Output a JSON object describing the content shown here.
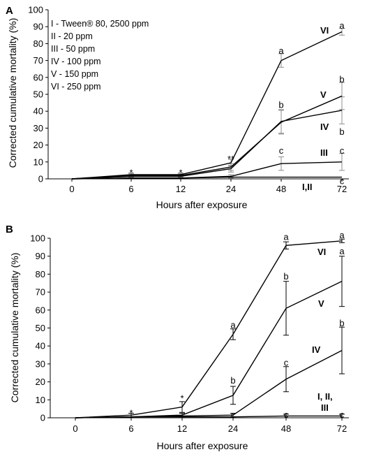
{
  "chart_data": [
    {
      "panel": "A",
      "type": "line",
      "xlabel": "Hours after exposure",
      "ylabel": "Corrected cumulative mortality (%)",
      "x": [
        0,
        6,
        12,
        24,
        48,
        72
      ],
      "ylim": [
        0,
        100
      ],
      "yticks": [
        0,
        10,
        20,
        30,
        40,
        50,
        60,
        70,
        80,
        90,
        100
      ],
      "grid": false,
      "legend": [
        "I - Tween® 80, 2500 ppm",
        "II - 20 ppm",
        "III - 50 ppm",
        "IV - 100 ppm",
        "V - 150 ppm",
        "VI - 250 ppm"
      ],
      "legend_placement": "top-left",
      "series": [
        {
          "name": "I,II",
          "values": [
            0,
            0.5,
            0.5,
            1,
            1,
            1
          ],
          "errors": [
            0,
            0,
            0,
            0,
            0,
            0
          ]
        },
        {
          "name": "III",
          "values": [
            0,
            0.5,
            0.5,
            1.5,
            9,
            10
          ],
          "errors": [
            0,
            0,
            0,
            1,
            4,
            5
          ]
        },
        {
          "name": "IV",
          "values": [
            0,
            1.5,
            1.5,
            6,
            34,
            40.5
          ],
          "errors": [
            0,
            1,
            1,
            2,
            7,
            8
          ]
        },
        {
          "name": "V",
          "values": [
            0,
            2,
            2,
            7,
            33.5,
            49
          ],
          "errors": [
            0,
            1,
            1,
            2,
            7,
            8
          ]
        },
        {
          "name": "VI",
          "values": [
            0,
            2.5,
            2.5,
            9.5,
            70,
            87
          ],
          "errors": [
            0,
            1,
            1,
            2,
            4,
            2
          ]
        }
      ],
      "annotations": [
        {
          "text": "*",
          "x": 6,
          "y": 4
        },
        {
          "text": "*",
          "x": 12,
          "y": 4
        },
        {
          "text": "**",
          "x": 24,
          "y": 12
        },
        {
          "text": "a",
          "x": 48,
          "y": 76
        },
        {
          "text": "a",
          "x": 72,
          "y": 91
        },
        {
          "text": "b",
          "x": 48,
          "y": 44
        },
        {
          "text": "b",
          "x": 72,
          "y": 59
        },
        {
          "text": "b",
          "x": 72,
          "y": 28
        },
        {
          "text": "c",
          "x": 48,
          "y": 17
        },
        {
          "text": "c",
          "x": 72,
          "y": 17
        },
        {
          "text": "c",
          "x": 72,
          "y": -1
        }
      ]
    },
    {
      "panel": "B",
      "type": "line",
      "xlabel": "Hours after exposure",
      "ylabel": "Corrected cumulative mortality (%)",
      "x": [
        0,
        6,
        12,
        24,
        48,
        72
      ],
      "ylim": [
        0,
        100
      ],
      "yticks": [
        0,
        10,
        20,
        30,
        40,
        50,
        60,
        70,
        80,
        90,
        100
      ],
      "grid": false,
      "series": [
        {
          "name": "I, II, III",
          "values": [
            0,
            0.5,
            0.5,
            0.5,
            1,
            1
          ],
          "errors": [
            0,
            0,
            0,
            0,
            1,
            1
          ]
        },
        {
          "name": "IV",
          "values": [
            0,
            0.5,
            1,
            1.5,
            21.5,
            37.5
          ],
          "errors": [
            0,
            0,
            0,
            1,
            7,
            13
          ]
        },
        {
          "name": "V",
          "values": [
            0,
            0.5,
            1.5,
            12.5,
            61,
            76
          ],
          "errors": [
            0,
            0,
            1,
            5,
            15,
            14
          ]
        },
        {
          "name": "VI",
          "values": [
            0,
            1.5,
            6,
            46.5,
            96,
            98.5
          ],
          "errors": [
            0,
            1,
            3,
            3,
            2,
            1
          ]
        }
      ],
      "annotations": [
        {
          "text": "*",
          "x": 6,
          "y": 3
        },
        {
          "text": "*",
          "x": 12,
          "y": 11
        },
        {
          "text": "a",
          "x": 24,
          "y": 52
        },
        {
          "text": "a",
          "x": 48,
          "y": 101
        },
        {
          "text": "a",
          "x": 72,
          "y": 102
        },
        {
          "text": "a",
          "x": 72,
          "y": 93
        },
        {
          "text": "b",
          "x": 24,
          "y": 21
        },
        {
          "text": "b",
          "x": 48,
          "y": 79
        },
        {
          "text": "b",
          "x": 72,
          "y": 53
        },
        {
          "text": "c",
          "x": 24,
          "y": 2
        },
        {
          "text": "c",
          "x": 48,
          "y": 31
        },
        {
          "text": "c",
          "x": 48,
          "y": 2
        },
        {
          "text": "c",
          "x": 72,
          "y": 2
        }
      ]
    }
  ]
}
